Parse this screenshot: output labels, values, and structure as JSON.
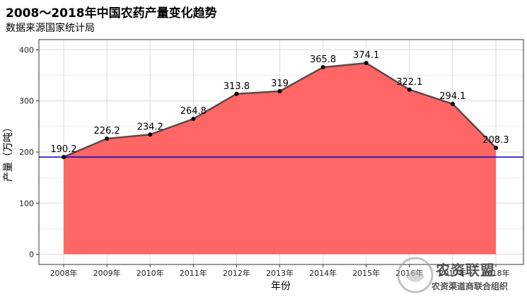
{
  "chart_data": {
    "type": "area",
    "title": "2008～2018年中国农药产量变化趋势",
    "subtitle": "数据来源国家统计局",
    "xlabel": "年份",
    "ylabel": "产量（万吨）",
    "categories": [
      "2008年",
      "2009年",
      "2010年",
      "2011年",
      "2012年",
      "2013年",
      "2014年",
      "2015年",
      "2016年",
      "2017年",
      "2018年"
    ],
    "values": [
      190.2,
      226.2,
      234.2,
      264.8,
      313.8,
      319,
      365.8,
      374.1,
      322.1,
      294.1,
      208.3
    ],
    "data_labels": [
      "190.2",
      "226.2",
      "234.2",
      "264.8",
      "313.8",
      "319",
      "365.8",
      "374.1",
      "322.1",
      "294.1",
      "208.3"
    ],
    "yticks": [
      0,
      100,
      200,
      300,
      400
    ],
    "ylim": [
      -20,
      420
    ],
    "reference_line": 190.2,
    "grid": true,
    "colors": {
      "area_fill": "#ff6666",
      "line": "#5a4a4a",
      "point": "#000000",
      "reference_line": "#0000cc",
      "grid": "#d9d9d9"
    }
  },
  "watermark": {
    "main_text": "农资联盟",
    "sub_text": "农资渠道商联合组织"
  }
}
